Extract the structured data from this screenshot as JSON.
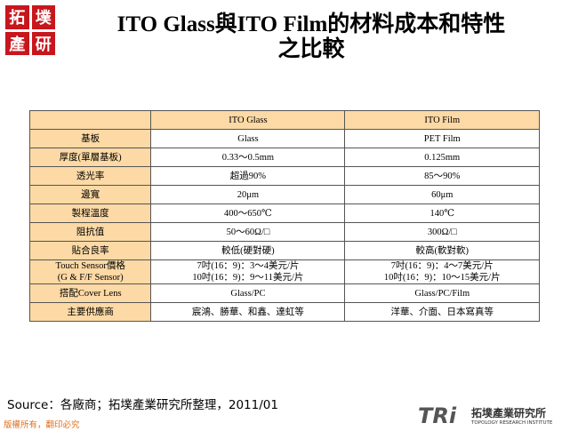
{
  "header": {
    "logo": [
      "拓",
      "墣",
      "產",
      "研"
    ],
    "title": [
      "ITO Glass與ITO Film的材料成本和特性",
      "之比較"
    ]
  },
  "table": {
    "columns": [
      "ITO Glass",
      "ITO Film"
    ],
    "rows": [
      [
        [
          "基板"
        ],
        [
          "Glass"
        ],
        [
          "PET Film"
        ]
      ],
      [
        [
          "厚度(單層基板)"
        ],
        [
          "0.33～0.5mm"
        ],
        [
          "0.125mm"
        ]
      ],
      [
        [
          "透光率"
        ],
        [
          "超過90%"
        ],
        [
          "85～90%"
        ]
      ],
      [
        [
          "邊寬"
        ],
        [
          "20μm"
        ],
        [
          "60μm"
        ]
      ],
      [
        [
          "製程溫度"
        ],
        [
          "400～650℃"
        ],
        [
          "140℃"
        ]
      ],
      [
        [
          "阻抗值"
        ],
        [
          "50～60Ω/□"
        ],
        [
          "300Ω/□"
        ]
      ],
      [
        [
          "貼合良率"
        ],
        [
          "較低(硬對硬)"
        ],
        [
          "較高(軟對軟)"
        ]
      ],
      [
        [
          "Touch Sensor價格",
          "(G & F/F Sensor)"
        ],
        [
          "7吋(16：9)：3～4美元/片",
          "10吋(16：9)：9～11美元/片"
        ],
        [
          "7吋(16：9)：4～7美元/片",
          "10吋(16：9)：10～15美元/片"
        ]
      ],
      [
        [
          "搭配Cover Lens"
        ],
        [
          "Glass/PC"
        ],
        [
          "Glass/PC/Film"
        ]
      ],
      [
        [
          "主要供應商"
        ],
        [
          "宸鴻、勝華、和鑫、達虹等"
        ],
        [
          "洋華、介面、日本寫真等"
        ]
      ]
    ]
  },
  "footer": {
    "source": "Source：各廠商；拓墣產業研究所整理，2011/01",
    "copyright": "版權所有，翻印必究",
    "brand": {
      "mark": "TRi",
      "name": "拓墣產業研究所",
      "name_en": "TOPOLOGY RESEARCH INSTITUTE"
    }
  }
}
